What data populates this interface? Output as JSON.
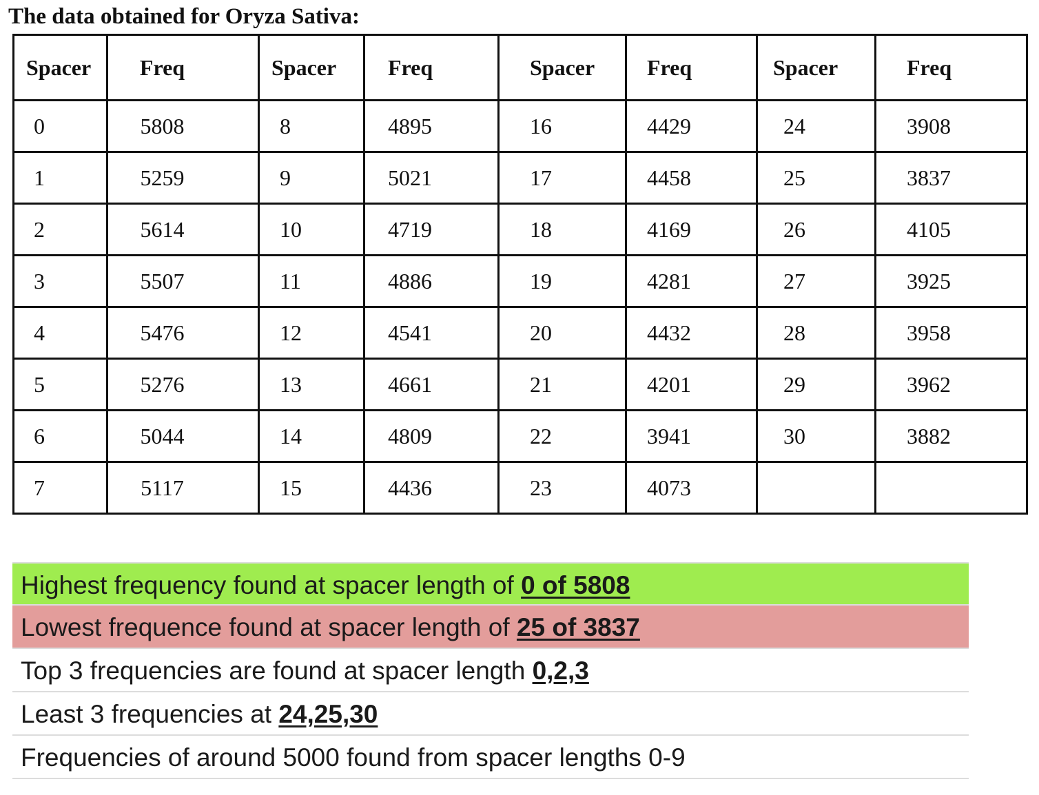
{
  "title": "The data obtained for Oryza Sativa:",
  "table": {
    "headers": [
      "Spacer",
      "Freq",
      "Spacer",
      "Freq",
      "Spacer",
      "Freq",
      "Spacer",
      "Freq"
    ],
    "rows": [
      [
        "0",
        "5808",
        "8",
        "4895",
        "16",
        "4429",
        "24",
        "3908"
      ],
      [
        "1",
        "5259",
        "9",
        "5021",
        "17",
        "4458",
        "25",
        "3837"
      ],
      [
        "2",
        "5614",
        "10",
        "4719",
        "18",
        "4169",
        "26",
        "4105"
      ],
      [
        "3",
        "5507",
        "11",
        "4886",
        "19",
        "4281",
        "27",
        "3925"
      ],
      [
        "4",
        "5476",
        "12",
        "4541",
        "20",
        "4432",
        "28",
        "3958"
      ],
      [
        "5",
        "5276",
        "13",
        "4661",
        "21",
        "4201",
        "29",
        "3962"
      ],
      [
        "6",
        "5044",
        "14",
        "4809",
        "22",
        "3941",
        "30",
        "3882"
      ],
      [
        "7",
        "5117",
        "15",
        "4436",
        "23",
        "4073",
        "",
        ""
      ]
    ]
  },
  "summary": [
    {
      "text": "Highest frequency found at spacer length of ",
      "emphasis": "0 of 5808",
      "background": "#9fec4f"
    },
    {
      "text": "Lowest frequence found at spacer length of ",
      "emphasis": "25 of 3837",
      "background": "#e39d9b"
    },
    {
      "text": "Top 3 frequencies are found at spacer length ",
      "emphasis": "0,2,3",
      "background": "#ffffff"
    },
    {
      "text": "Least 3 frequencies at ",
      "emphasis": "24,25,30",
      "background": "#ffffff"
    },
    {
      "text": "Frequencies of around 5000 found from spacer lengths 0-9",
      "emphasis": "",
      "background": "#ffffff"
    }
  ]
}
